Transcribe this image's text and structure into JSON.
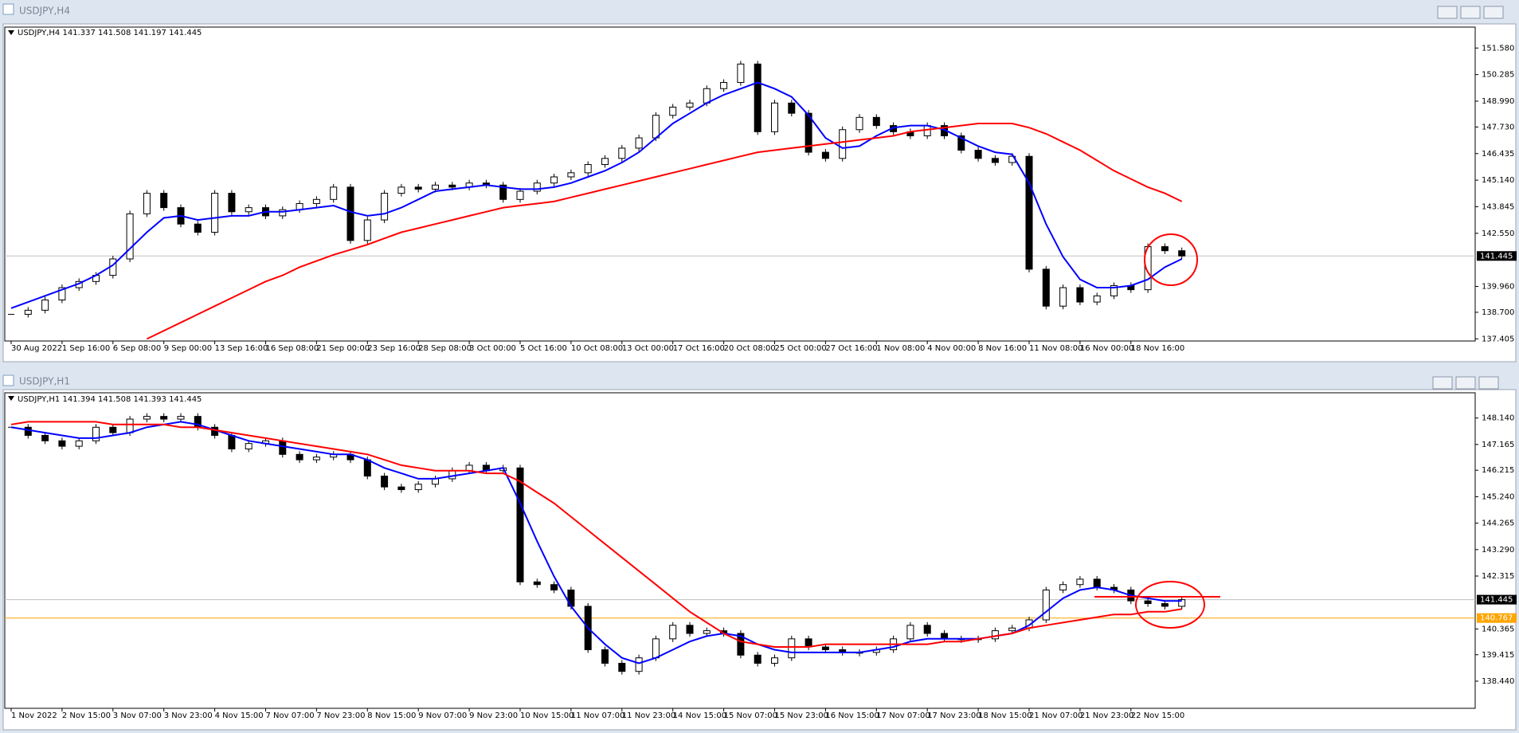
{
  "chart_data": [
    {
      "type": "candlestick",
      "window_title": "USDJPY,H4",
      "info": "USDJPY,H4  141.337 141.508 141.197 141.445",
      "categories": [
        "30 Aug 2022",
        null,
        null,
        "1 Sep 16:00",
        null,
        null,
        "6 Sep 08:00",
        null,
        null,
        "9 Sep 00:00",
        null,
        null,
        "13 Sep 16:00",
        null,
        null,
        "16 Sep 08:00",
        null,
        null,
        "21 Sep 00:00",
        null,
        null,
        "23 Sep 16:00",
        null,
        null,
        "28 Sep 08:00",
        null,
        null,
        "3 Oct 00:00",
        null,
        null,
        "5 Oct 16:00",
        null,
        null,
        "10 Oct 08:00",
        null,
        null,
        "13 Oct 00:00",
        null,
        null,
        "17 Oct 16:00",
        null,
        null,
        "20 Oct 08:00",
        null,
        null,
        "25 Oct 00:00",
        null,
        null,
        "27 Oct 16:00",
        null,
        null,
        "1 Nov 08:00",
        null,
        null,
        "4 Nov 00:00",
        null,
        null,
        "8 Nov 16:00",
        null,
        null,
        "11 Nov 08:00",
        null,
        null,
        "16 Nov 00:00",
        null,
        null,
        "18 Nov 16:00",
        null,
        null,
        null
      ],
      "values": [
        138.6,
        138.8,
        139.3,
        139.9,
        140.2,
        140.5,
        141.3,
        143.5,
        144.5,
        143.8,
        143.0,
        142.6,
        144.5,
        143.6,
        143.8,
        143.4,
        143.7,
        144.0,
        144.2,
        144.8,
        142.2,
        143.2,
        144.5,
        144.8,
        144.7,
        144.9,
        144.8,
        145.0,
        144.9,
        144.2,
        144.6,
        145.0,
        145.3,
        145.5,
        145.9,
        146.2,
        146.7,
        147.2,
        148.3,
        148.7,
        148.9,
        149.6,
        149.9,
        150.8,
        147.5,
        148.9,
        148.4,
        146.5,
        146.2,
        147.6,
        148.2,
        147.8,
        147.5,
        147.3,
        147.8,
        147.3,
        146.6,
        146.2,
        146.0,
        146.3,
        140.8,
        139.0,
        139.9,
        139.2,
        139.5,
        140.0,
        139.8,
        141.9,
        141.7,
        141.445
      ],
      "lines": [
        {
          "color": "#0000ff",
          "values": [
            138.9,
            139.2,
            139.5,
            139.8,
            140.1,
            140.5,
            141.0,
            141.8,
            142.6,
            143.3,
            143.4,
            143.2,
            143.3,
            143.4,
            143.4,
            143.6,
            143.6,
            143.7,
            143.8,
            143.9,
            143.6,
            143.4,
            143.5,
            143.8,
            144.2,
            144.6,
            144.7,
            144.8,
            144.9,
            144.8,
            144.7,
            144.7,
            144.8,
            145.0,
            145.3,
            145.6,
            146.0,
            146.5,
            147.2,
            147.9,
            148.4,
            148.9,
            149.3,
            149.6,
            149.9,
            149.6,
            149.2,
            148.3,
            147.2,
            146.7,
            146.8,
            147.3,
            147.7,
            147.8,
            147.8,
            147.6,
            147.2,
            146.8,
            146.5,
            146.4,
            145.0,
            143.0,
            141.4,
            140.3,
            139.9,
            139.9,
            140.0,
            140.3,
            140.9,
            141.3
          ]
        },
        {
          "color": "#ff0000",
          "values": [
            null,
            null,
            null,
            null,
            null,
            null,
            null,
            null,
            137.4,
            137.8,
            138.2,
            138.6,
            139.0,
            139.4,
            139.8,
            140.2,
            140.5,
            140.9,
            141.2,
            141.5,
            141.75,
            142.0,
            142.3,
            142.6,
            142.8,
            143.0,
            143.2,
            143.4,
            143.6,
            143.8,
            143.9,
            144.0,
            144.1,
            144.3,
            144.5,
            144.7,
            144.9,
            145.1,
            145.3,
            145.5,
            145.7,
            145.9,
            146.1,
            146.3,
            146.5,
            146.6,
            146.7,
            146.8,
            146.9,
            147.0,
            147.1,
            147.2,
            147.3,
            147.5,
            147.6,
            147.7,
            147.8,
            147.9,
            147.9,
            147.9,
            147.7,
            147.4,
            147.0,
            146.6,
            146.1,
            145.6,
            145.2,
            144.8,
            144.5,
            144.1
          ]
        }
      ],
      "hlines": [
        {
          "value": 141.445,
          "color": "#c0c0c0"
        }
      ],
      "ylim": [
        137.3,
        152.6
      ],
      "yticks": [
        {
          "value": 151.58,
          "label": "151.580"
        },
        {
          "value": 150.285,
          "label": "150.285"
        },
        {
          "value": 148.99,
          "label": "148.990"
        },
        {
          "value": 147.73,
          "label": "147.730"
        },
        146.435,
        {
          "value": 145.14,
          "label": "145.140"
        },
        143.845,
        {
          "value": 142.55,
          "label": "142.550"
        },
        {
          "value": 139.96,
          "label": "139.960"
        },
        {
          "value": 138.7,
          "label": "138.700"
        },
        137.405
      ]
    },
    {
      "type": "candlestick",
      "window_title": "USDJPY,H1",
      "info": "USDJPY,H1  141.394 141.508 141.393 141.445",
      "categories": [
        "1 Nov 2022",
        null,
        null,
        "2 Nov 15:00",
        null,
        null,
        "3 Nov 07:00",
        null,
        null,
        "3 Nov 23:00",
        null,
        null,
        "4 Nov 15:00",
        null,
        null,
        "7 Nov 07:00",
        null,
        null,
        "7 Nov 23:00",
        null,
        null,
        "8 Nov 15:00",
        null,
        null,
        "9 Nov 07:00",
        null,
        null,
        "9 Nov 23:00",
        null,
        null,
        "10 Nov 15:00",
        null,
        null,
        "11 Nov 07:00",
        null,
        null,
        "11 Nov 23:00",
        null,
        null,
        "14 Nov 15:00",
        null,
        null,
        "15 Nov 07:00",
        null,
        null,
        "15 Nov 23:00",
        null,
        null,
        "16 Nov 15:00",
        null,
        null,
        "17 Nov 07:00",
        null,
        null,
        "17 Nov 23:00",
        null,
        null,
        "18 Nov 15:00",
        null,
        null,
        "21 Nov 07:00",
        null,
        null,
        "21 Nov 23:00",
        null,
        null,
        "22 Nov 15:00",
        null,
        null,
        null
      ],
      "values": [
        147.8,
        147.5,
        147.3,
        147.1,
        147.3,
        147.8,
        147.6,
        148.1,
        148.2,
        148.1,
        148.2,
        147.8,
        147.5,
        147.0,
        147.2,
        147.3,
        146.8,
        146.6,
        146.7,
        146.8,
        146.6,
        146.0,
        145.6,
        145.5,
        145.7,
        145.9,
        146.2,
        146.4,
        146.2,
        146.3,
        142.1,
        142.0,
        141.8,
        141.2,
        139.6,
        139.1,
        138.8,
        139.3,
        140.0,
        140.5,
        140.2,
        140.3,
        140.2,
        139.4,
        139.1,
        139.3,
        140.0,
        139.7,
        139.6,
        139.5,
        139.5,
        139.6,
        140.0,
        140.5,
        140.2,
        140.0,
        140.0,
        140.0,
        140.3,
        140.4,
        140.7,
        141.8,
        142.0,
        142.2,
        141.9,
        141.8,
        141.4,
        141.3,
        141.2,
        141.445
      ],
      "lines": [
        {
          "color": "#0000ff",
          "values": [
            147.8,
            147.7,
            147.6,
            147.5,
            147.4,
            147.4,
            147.5,
            147.6,
            147.8,
            147.9,
            148.0,
            147.9,
            147.7,
            147.5,
            147.3,
            147.2,
            147.1,
            147.0,
            146.9,
            146.8,
            146.8,
            146.6,
            146.3,
            146.1,
            145.9,
            145.9,
            146.0,
            146.1,
            146.2,
            146.3,
            145.0,
            143.6,
            142.3,
            141.2,
            140.4,
            139.8,
            139.3,
            139.1,
            139.3,
            139.6,
            139.9,
            140.1,
            140.2,
            140.1,
            139.8,
            139.6,
            139.5,
            139.5,
            139.5,
            139.5,
            139.5,
            139.6,
            139.7,
            139.9,
            140.0,
            140.0,
            140.0,
            140.0,
            140.1,
            140.2,
            140.5,
            141.0,
            141.5,
            141.8,
            141.9,
            141.8,
            141.6,
            141.5,
            141.4,
            141.4
          ]
        },
        {
          "color": "#ff0000",
          "values": [
            147.9,
            148.0,
            148.0,
            148.0,
            148.0,
            148.0,
            147.9,
            147.9,
            147.9,
            147.9,
            147.8,
            147.8,
            147.7,
            147.6,
            147.5,
            147.4,
            147.3,
            147.2,
            147.1,
            147.0,
            146.9,
            146.8,
            146.6,
            146.4,
            146.3,
            146.2,
            146.2,
            146.2,
            146.1,
            146.1,
            145.8,
            145.4,
            145.0,
            144.5,
            144.0,
            143.5,
            143.0,
            142.5,
            142.0,
            141.5,
            141.0,
            140.6,
            140.2,
            139.9,
            139.8,
            139.7,
            139.7,
            139.7,
            139.8,
            139.8,
            139.8,
            139.8,
            139.8,
            139.8,
            139.8,
            139.9,
            139.9,
            140.0,
            140.1,
            140.2,
            140.4,
            140.5,
            140.6,
            140.7,
            140.8,
            140.9,
            140.9,
            141.0,
            141.0,
            141.1
          ]
        }
      ],
      "hlines": [
        {
          "value": 141.445,
          "color": "#c0c0c0"
        },
        {
          "value": 140.767,
          "color": "#ffa500"
        }
      ],
      "ylim": [
        137.44,
        149.07
      ],
      "yticks": [
        {
          "value": 148.14,
          "label": "148.140"
        },
        147.165,
        146.215,
        {
          "value": 145.24,
          "label": "145.240"
        },
        144.265,
        {
          "value": 143.29,
          "label": "143.290"
        },
        142.315,
        140.365,
        139.415,
        {
          "value": 138.44,
          "label": "138.440"
        }
      ]
    }
  ]
}
